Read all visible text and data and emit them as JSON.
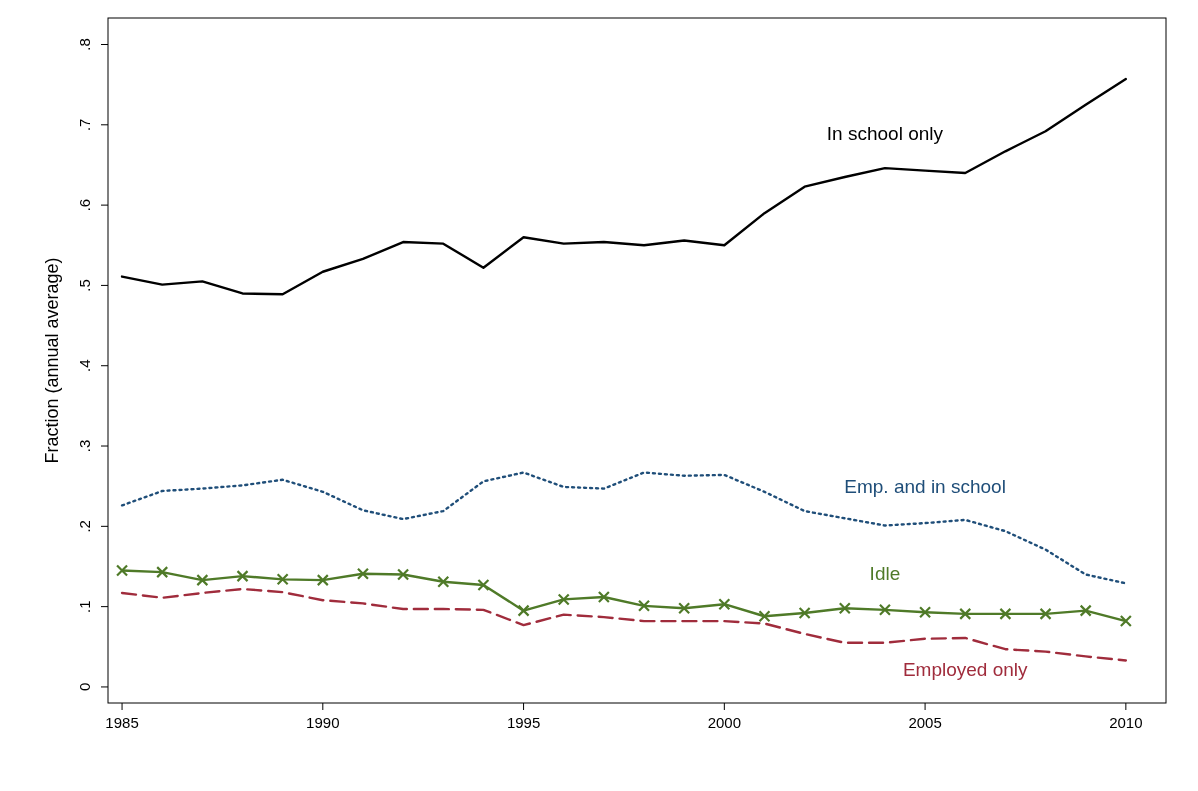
{
  "chart_data": {
    "type": "line",
    "ylabel": "Fraction (annual average)",
    "x": [
      1985,
      1986,
      1987,
      1988,
      1989,
      1990,
      1991,
      1992,
      1993,
      1994,
      1995,
      1996,
      1997,
      1998,
      1999,
      2000,
      2001,
      2002,
      2003,
      2004,
      2005,
      2006,
      2007,
      2008,
      2009,
      2010
    ],
    "xlim": [
      1984.65,
      2011
    ],
    "xticks": [
      1985,
      1990,
      1995,
      2000,
      2005,
      2010
    ],
    "ylim": [
      -0.02,
      0.833
    ],
    "yticks": [
      {
        "value": 0,
        "label": "0"
      },
      {
        "value": 0.1,
        "label": ".1"
      },
      {
        "value": 0.2,
        "label": ".2"
      },
      {
        "value": 0.3,
        "label": ".3"
      },
      {
        "value": 0.4,
        "label": ".4"
      },
      {
        "value": 0.5,
        "label": ".5"
      },
      {
        "value": 0.6,
        "label": ".6"
      },
      {
        "value": 0.7,
        "label": ".7"
      },
      {
        "value": 0.8,
        "label": ".8"
      }
    ],
    "grid": false,
    "series": [
      {
        "name": "In school only",
        "color": "#000000",
        "line_style": "solid",
        "values": [
          0.511,
          0.501,
          0.505,
          0.49,
          0.489,
          0.517,
          0.533,
          0.554,
          0.552,
          0.522,
          0.56,
          0.552,
          0.554,
          0.55,
          0.556,
          0.55,
          0.59,
          0.623,
          0.635,
          0.646,
          0.643,
          0.64,
          0.667,
          0.692,
          0.725,
          0.757
        ]
      },
      {
        "name": "Emp. and in school",
        "color": "#1f4e79",
        "line_style": "dotted",
        "values": [
          0.226,
          0.244,
          0.247,
          0.251,
          0.258,
          0.243,
          0.22,
          0.209,
          0.219,
          0.256,
          0.267,
          0.249,
          0.247,
          0.267,
          0.263,
          0.264,
          0.243,
          0.219,
          0.21,
          0.201,
          0.204,
          0.208,
          0.194,
          0.171,
          0.14,
          0.129
        ]
      },
      {
        "name": "Idle",
        "color": "#4f7a28",
        "line_style": "solid",
        "marker": "cross",
        "values": [
          0.145,
          0.143,
          0.133,
          0.138,
          0.134,
          0.133,
          0.141,
          0.14,
          0.131,
          0.127,
          0.095,
          0.109,
          0.112,
          0.101,
          0.098,
          0.103,
          0.088,
          0.092,
          0.098,
          0.096,
          0.093,
          0.091,
          0.091,
          0.091,
          0.095,
          0.082
        ]
      },
      {
        "name": "Employed only",
        "color": "#a02c3c",
        "line_style": "dashed",
        "values": [
          0.117,
          0.111,
          0.117,
          0.122,
          0.118,
          0.108,
          0.104,
          0.097,
          0.097,
          0.096,
          0.077,
          0.09,
          0.087,
          0.082,
          0.082,
          0.082,
          0.079,
          0.066,
          0.055,
          0.055,
          0.06,
          0.061,
          0.047,
          0.044,
          0.038,
          0.033
        ]
      }
    ]
  }
}
